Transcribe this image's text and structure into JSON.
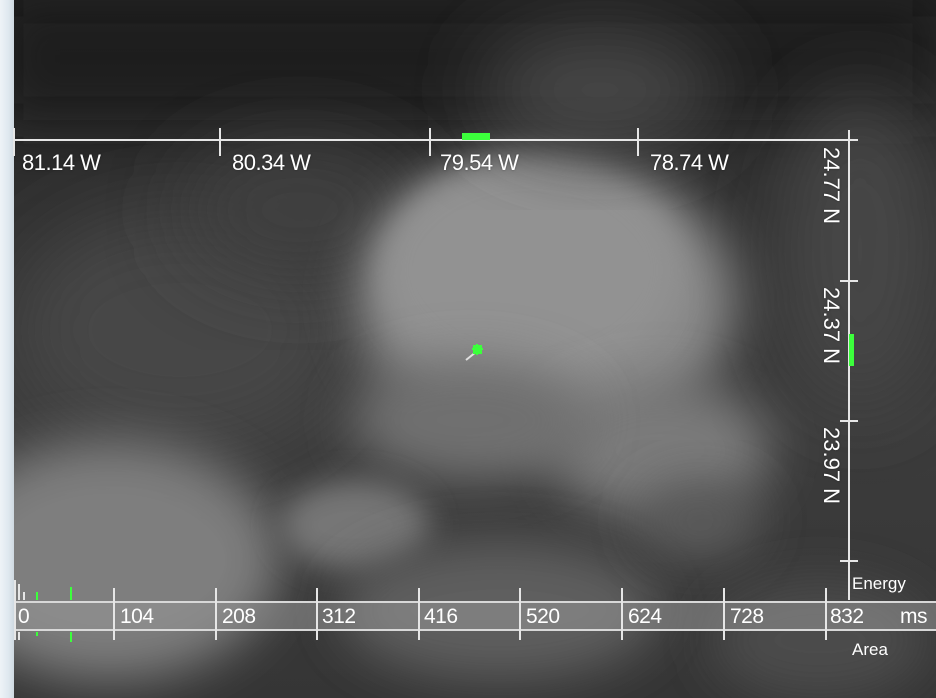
{
  "longitude_axis": {
    "labels": [
      "81.14 W",
      "80.34 W",
      "79.54 W",
      "78.74 W"
    ]
  },
  "latitude_axis": {
    "labels": [
      "24.77 N",
      "24.37 N",
      "23.97 N"
    ]
  },
  "time_axis": {
    "ticks": [
      "0",
      "104",
      "208",
      "312",
      "416",
      "520",
      "624",
      "728",
      "832"
    ],
    "unit": "ms",
    "upper_label": "Energy",
    "lower_label": "Area"
  },
  "colors": {
    "axis": "#e6e6e6",
    "marker": "#3cff3c"
  },
  "icons": {
    "target_marker": "crosshair-marker-icon"
  }
}
